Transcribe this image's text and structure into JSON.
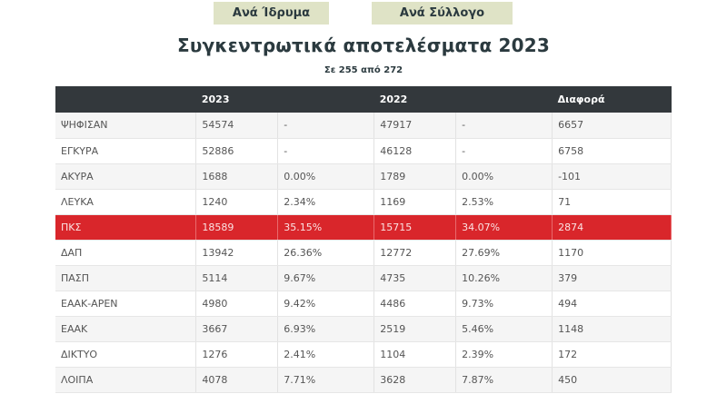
{
  "buttons": {
    "by_institution": "Ανά Ίδρυμα",
    "by_association": "Ανά Σύλλογο"
  },
  "title": "Συγκεντρωτικά αποτελέσματα 2023",
  "subtitle": "Σε 255 από 272",
  "colors": {
    "button_bg": "#dfe3c6",
    "header_bg": "#33383c",
    "highlight_row": "#d9262b",
    "title_text": "#2b3a3f"
  },
  "table": {
    "headers": [
      "",
      "2023",
      "",
      "2022",
      "",
      "Διαφορά"
    ],
    "rows": [
      {
        "label": "ΨΗΦΙΣΑΝ",
        "v2023": "54574",
        "p2023": "-",
        "v2022": "47917",
        "p2022": "-",
        "diff": "6657"
      },
      {
        "label": "ΕΓΚΥΡΑ",
        "v2023": "52886",
        "p2023": "-",
        "v2022": "46128",
        "p2022": "-",
        "diff": "6758"
      },
      {
        "label": "ΑΚΥΡΑ",
        "v2023": "1688",
        "p2023": "0.00%",
        "v2022": "1789",
        "p2022": "0.00%",
        "diff": "-101"
      },
      {
        "label": "ΛΕΥΚΑ",
        "v2023": "1240",
        "p2023": "2.34%",
        "v2022": "1169",
        "p2022": "2.53%",
        "diff": "71"
      },
      {
        "label": "ΠΚΣ",
        "v2023": "18589",
        "p2023": "35.15%",
        "v2022": "15715",
        "p2022": "34.07%",
        "diff": "2874"
      },
      {
        "label": "ΔΑΠ",
        "v2023": "13942",
        "p2023": "26.36%",
        "v2022": "12772",
        "p2022": "27.69%",
        "diff": "1170"
      },
      {
        "label": "ΠΑΣΠ",
        "v2023": "5114",
        "p2023": "9.67%",
        "v2022": "4735",
        "p2022": "10.26%",
        "diff": "379"
      },
      {
        "label": "ΕΑΑΚ-ΑΡΕΝ",
        "v2023": "4980",
        "p2023": "9.42%",
        "v2022": "4486",
        "p2022": "9.73%",
        "diff": "494"
      },
      {
        "label": "ΕΑΑΚ",
        "v2023": "3667",
        "p2023": "6.93%",
        "v2022": "2519",
        "p2022": "5.46%",
        "diff": "1148"
      },
      {
        "label": "ΔΙΚΤΥΟ",
        "v2023": "1276",
        "p2023": "2.41%",
        "v2022": "1104",
        "p2022": "2.39%",
        "diff": "172"
      },
      {
        "label": "ΛΟΙΠΑ",
        "v2023": "4078",
        "p2023": "7.71%",
        "v2022": "3628",
        "p2022": "7.87%",
        "diff": "450"
      }
    ]
  }
}
